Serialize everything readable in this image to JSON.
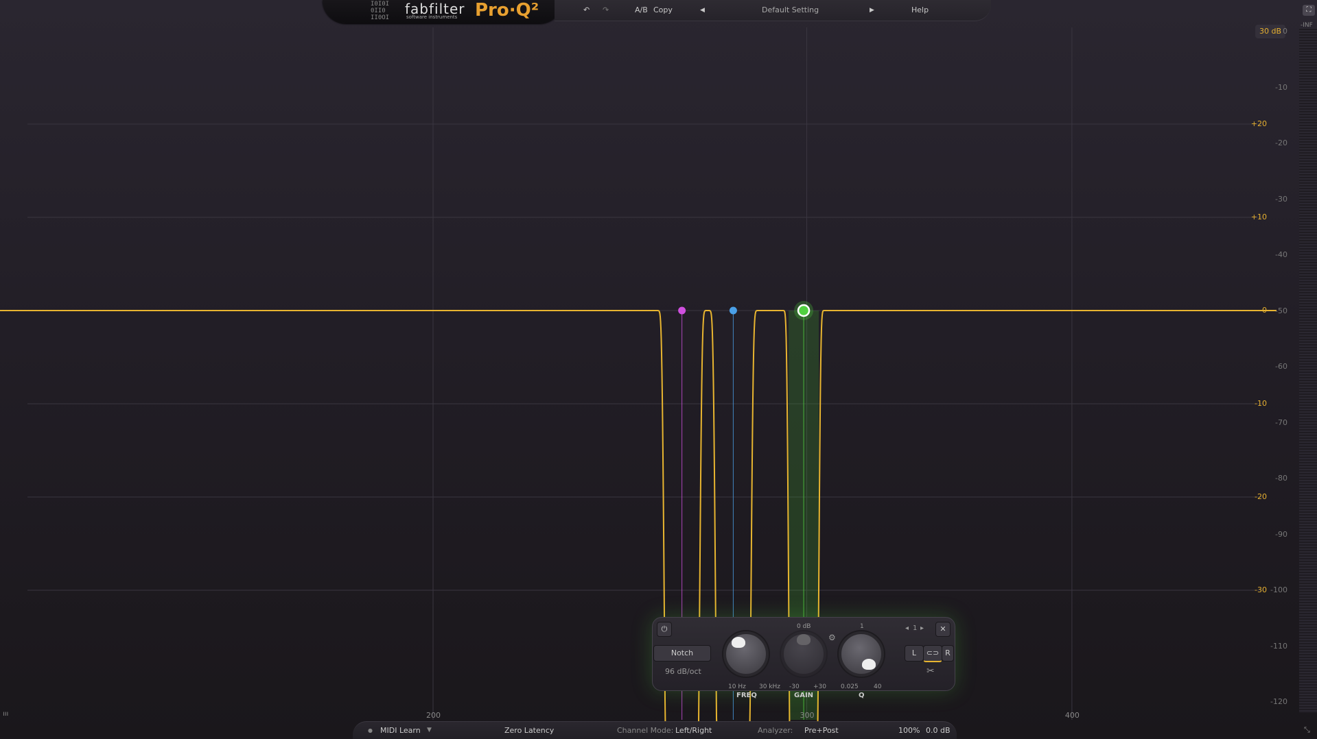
{
  "header": {
    "brand": "fabfilter",
    "brand_sub": "software instruments",
    "product": "Pro·Q²",
    "undo_icon": "undo-icon",
    "redo_icon": "redo-icon",
    "ab_label": "A/B",
    "copy_label": "Copy",
    "preset_prev_icon": "triangle-left-icon",
    "preset_name": "Default Setting",
    "preset_next_icon": "triangle-right-icon",
    "help_label": "Help"
  },
  "display": {
    "range_button": "30 dB",
    "meter_top": "-INF",
    "gain_scale": [
      "+20",
      "+10",
      "0",
      "-10",
      "-20",
      "-30"
    ],
    "gain_values": [
      20,
      10,
      0,
      -10,
      -20,
      -30
    ],
    "analyzer_scale": [
      "0",
      "-10",
      "-20",
      "-30",
      "-40",
      "-50",
      "-60",
      "-70",
      "-80",
      "-90",
      "-100",
      "-110",
      "-120"
    ],
    "analyzer_values": [
      0,
      -10,
      -20,
      -30,
      -40,
      -50,
      -60,
      -70,
      -80,
      -90,
      -100,
      -110,
      -120
    ],
    "freq_labels": [
      "200",
      "300",
      "400"
    ],
    "freq_values": [
      200,
      300,
      400
    ],
    "curve_color": "#e8b530",
    "bands": [
      {
        "type": "Notch",
        "freq_hz": 262,
        "color": "#d050e0"
      },
      {
        "type": "Notch",
        "freq_hz": 277,
        "color": "#4aa0e8"
      },
      {
        "type": "Notch",
        "freq_hz": 299,
        "color": "#50d040",
        "selected": true
      }
    ]
  },
  "band_panel": {
    "power_icon": "power-icon",
    "shape": "Notch",
    "slope": "96 dB/oct",
    "freq": {
      "label": "FREQ",
      "min": "10 Hz",
      "max": "30 kHz"
    },
    "gain": {
      "label": "GAIN",
      "center": "0 dB",
      "min": "-30",
      "max": "+30"
    },
    "q": {
      "label": "Q",
      "center": "1",
      "min": "0.025",
      "max": "40"
    },
    "band_number": "1",
    "close_icon": "close-icon",
    "channel": {
      "left": "L",
      "stereo_icon": "stereo-link-icon",
      "right": "R"
    },
    "scissors_icon": "scissors-icon"
  },
  "status_bar": {
    "midi_learn": "MIDI Learn",
    "latency": "Zero Latency",
    "channel_mode_label": "Channel Mode:",
    "channel_mode_value": "Left/Right",
    "analyzer_label": "Analyzer:",
    "analyzer_value": "Pre+Post",
    "zoom": "100%",
    "output_gain": "0.0 dB"
  }
}
